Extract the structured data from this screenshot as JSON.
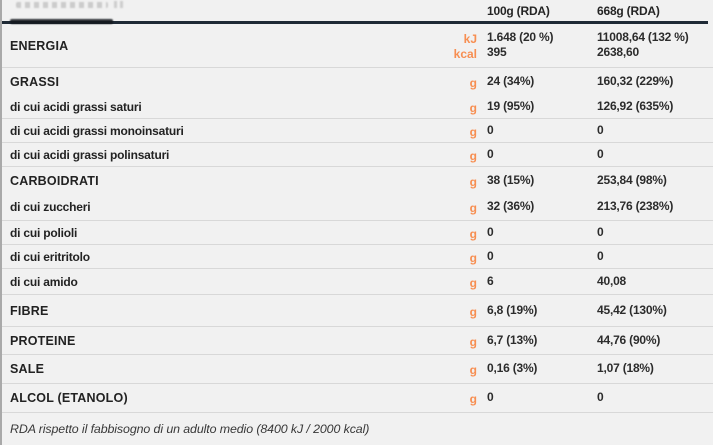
{
  "table": {
    "columns": {
      "per100": "100g (RDA)",
      "per668": "668g (RDA)"
    },
    "rows": [
      {
        "id": "energia",
        "label": "ENERGIA",
        "category": true,
        "lines": [
          {
            "unit": "kJ",
            "per100": "1.648 (20 %)",
            "per668": "11008,64 (132 %)"
          },
          {
            "unit": "kcal",
            "per100": "395",
            "per668": "2638,60"
          }
        ]
      },
      {
        "id": "grassi",
        "label": "GRASSI",
        "category": true,
        "unit": "g",
        "per100": "24 (34%)",
        "per668": "160,32 (229%)"
      },
      {
        "id": "grassi-saturi",
        "label": "di cui acidi grassi saturi",
        "category": false,
        "unit": "g",
        "per100": "19 (95%)",
        "per668": "126,92  (635%)"
      },
      {
        "id": "grassi-monoinsaturi",
        "label": "di cui acidi grassi monoinsaturi",
        "category": false,
        "unit": "g",
        "per100": "0",
        "per668": "0"
      },
      {
        "id": "grassi-polinsaturi",
        "label": "di cui acidi grassi polinsaturi",
        "category": false,
        "unit": "g",
        "per100": "0",
        "per668": "0"
      },
      {
        "id": "carboidrati",
        "label": "CARBOIDRATI",
        "category": true,
        "unit": "g",
        "per100": "38 (15%)",
        "per668": "253,84 (98%)"
      },
      {
        "id": "zuccheri",
        "label": "di cui zuccheri",
        "category": false,
        "unit": "g",
        "per100": "32 (36%)",
        "per668": "213,76 (238%)"
      },
      {
        "id": "polioli",
        "label": "di cui polioli",
        "category": false,
        "unit": "g",
        "per100": "0",
        "per668": "0"
      },
      {
        "id": "eritritolo",
        "label": "di cui eritritolo",
        "category": false,
        "unit": "g",
        "per100": "0",
        "per668": "0"
      },
      {
        "id": "amido",
        "label": "di cui amido",
        "category": false,
        "unit": "g",
        "per100": "6",
        "per668": "40,08"
      },
      {
        "id": "fibre",
        "label": "FIBRE",
        "category": true,
        "unit": "g",
        "per100": "6,8 (19%)",
        "per668": "45,42 (130%)"
      },
      {
        "id": "proteine",
        "label": "PROTEINE",
        "category": true,
        "unit": "g",
        "per100": "6,7 (13%)",
        "per668": "44,76 (90%)"
      },
      {
        "id": "sale",
        "label": "SALE",
        "category": true,
        "unit": "g",
        "per100": "0,16 (3%)",
        "per668": "1,07 (18%)"
      },
      {
        "id": "alcol",
        "label": "ALCOL (ETANOLO)",
        "category": true,
        "unit": "g",
        "per100": "0",
        "per668": "0"
      }
    ],
    "footer_note": "RDA rispetto il fabbisogno di un adulto medio (8400 kJ / 2000 kcal)"
  },
  "colors": {
    "accent_orange": "#f78e51",
    "header_line": "#1f2a36",
    "background": "#f1f1f1",
    "divider": "#d8d8d8",
    "text": "#262626"
  }
}
